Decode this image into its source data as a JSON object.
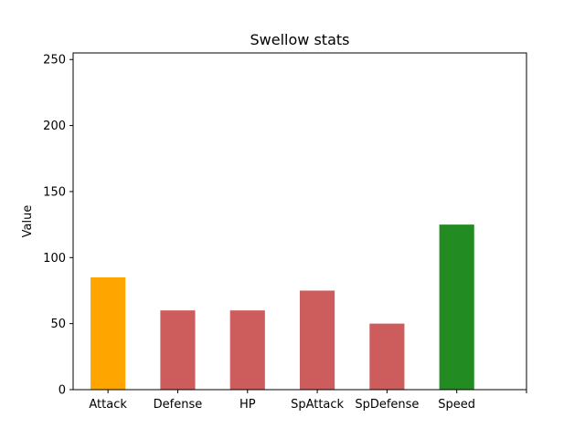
{
  "chart_data": {
    "type": "bar",
    "title": "Swellow stats",
    "xlabel": "",
    "ylabel": "Value",
    "categories": [
      "Attack",
      "Defense",
      "HP",
      "SpAttack",
      "SpDefense",
      "Speed"
    ],
    "values": [
      85,
      60,
      60,
      75,
      50,
      125
    ],
    "colors": [
      "#ffa500",
      "#cd5c5c",
      "#cd5c5c",
      "#cd5c5c",
      "#cd5c5c",
      "#228b22"
    ],
    "ylim": [
      0,
      255
    ],
    "yticks": [
      0,
      50,
      100,
      150,
      200,
      250
    ],
    "grid": false,
    "legend": "none"
  }
}
